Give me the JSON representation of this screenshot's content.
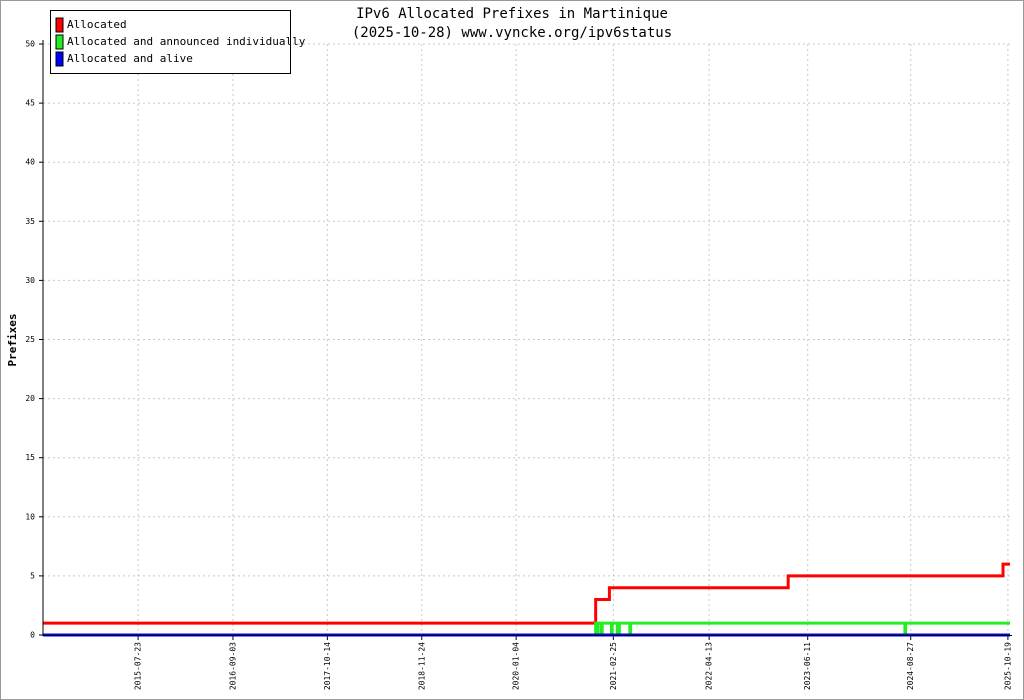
{
  "chart_data": {
    "type": "line",
    "title": "IPv6 Allocated Prefixes in Martinique",
    "subtitle": "(2025-10-28) www.vyncke.org/ipv6status",
    "ylabel": "Prefixes",
    "step": true,
    "grid": true,
    "legend": "upper left",
    "x": [
      "2014-06-09",
      "2020-12-11",
      "2020-12-19",
      "2020-12-22",
      "2021-01-05",
      "2021-01-08",
      "2021-02-08",
      "2021-02-17",
      "2021-02-20",
      "2021-03-14",
      "2021-03-23",
      "2021-05-07",
      "2021-05-10",
      "2023-03-19",
      "2024-08-02",
      "2024-08-05",
      "2025-09-28",
      "2025-10-28"
    ],
    "series": [
      {
        "name": "Allocated",
        "color": "#ff0000",
        "values": [
          1,
          3,
          3,
          3,
          3,
          3,
          4,
          4,
          4,
          4,
          4,
          4,
          4,
          5,
          5,
          5,
          6,
          6
        ]
      },
      {
        "name": "Allocated and announced individually",
        "color": "#22ee22",
        "values": [
          0,
          1,
          0,
          1,
          0,
          1,
          1,
          0,
          1,
          0,
          1,
          0,
          1,
          1,
          0,
          1,
          1,
          1
        ]
      },
      {
        "name": "Allocated and alive",
        "color": "#0000ff",
        "values": [
          0,
          0,
          0,
          0,
          0,
          0,
          0,
          0,
          0,
          0,
          0,
          0,
          0,
          0,
          0,
          0,
          0,
          0
        ]
      }
    ],
    "xlim": [
      "2014-06-09",
      "2025-10-28"
    ],
    "xticks": [
      "2015-07-23",
      "2016-09-03",
      "2017-10-14",
      "2018-11-24",
      "2020-01-04",
      "2021-02-25",
      "2022-04-13",
      "2023-06-11",
      "2024-08-27",
      "2025-10-19"
    ],
    "ylim": [
      0,
      50
    ],
    "yticks": [
      0,
      5,
      10,
      15,
      20,
      25,
      30,
      35,
      40,
      45,
      50
    ]
  }
}
